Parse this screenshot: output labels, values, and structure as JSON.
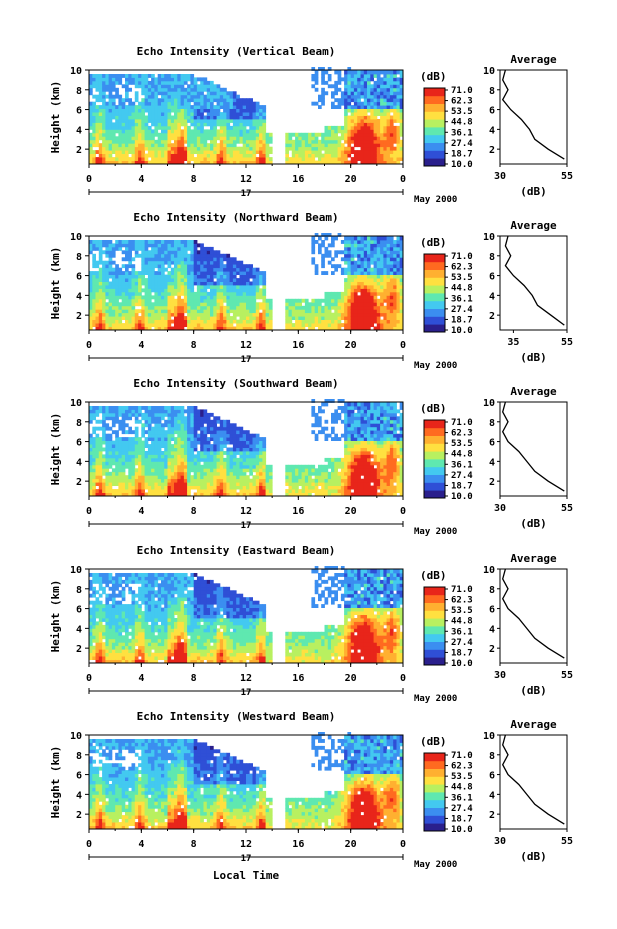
{
  "page": {
    "xlabel": "Local Time",
    "date_label": "May 2000",
    "day_label": "17"
  },
  "colorbar": {
    "unit": "(dB)",
    "ticks": [
      "71.0",
      "62.3",
      "53.5",
      "44.8",
      "36.1",
      "27.4",
      "18.7",
      "10.0"
    ],
    "colors": [
      "#2a1f8c",
      "#2f4fd6",
      "#3b8ef0",
      "#43c9f0",
      "#5fe8b0",
      "#b8f060",
      "#ffe040",
      "#ffb030",
      "#ff6a20",
      "#e8251a"
    ]
  },
  "chart_data": [
    {
      "type": "heatmap",
      "title": "Echo Intensity (Vertical Beam)",
      "ylabel": "Height (km)",
      "x_ticks": [
        "0",
        "4",
        "8",
        "12",
        "16",
        "20",
        "0"
      ],
      "y_ticks": [
        "2",
        "4",
        "6",
        "8",
        "10"
      ],
      "xlim": [
        0,
        24
      ],
      "ylim": [
        0.5,
        10
      ],
      "profile": {
        "title": "Average",
        "xlabel": "(dB)",
        "x_ticks": [
          "30",
          "55"
        ],
        "xlim": [
          30,
          55
        ],
        "y_ticks": [
          "2",
          "4",
          "6",
          "8",
          "10"
        ],
        "height": [
          1,
          2,
          3,
          4,
          5,
          6,
          7,
          8,
          9,
          10
        ],
        "value": [
          54,
          48,
          43,
          41,
          38,
          34,
          31,
          33,
          31,
          32
        ]
      }
    },
    {
      "type": "heatmap",
      "title": "Echo Intensity (Northward Beam)",
      "ylabel": "Height (km)",
      "x_ticks": [
        "0",
        "4",
        "8",
        "12",
        "16",
        "20",
        "0"
      ],
      "y_ticks": [
        "2",
        "4",
        "6",
        "8",
        "10"
      ],
      "xlim": [
        0,
        24
      ],
      "ylim": [
        0.5,
        10
      ],
      "profile": {
        "title": "Average",
        "xlabel": "(dB)",
        "x_ticks": [
          "35",
          "55"
        ],
        "xlim": [
          30,
          55
        ],
        "y_ticks": [
          "2",
          "4",
          "6",
          "8",
          "10"
        ],
        "height": [
          1,
          2,
          3,
          4,
          5,
          6,
          7,
          8,
          9,
          10
        ],
        "value": [
          54,
          49,
          44,
          42,
          39,
          35,
          32,
          34,
          32,
          33
        ]
      }
    },
    {
      "type": "heatmap",
      "title": "Echo Intensity (Southward Beam)",
      "ylabel": "Height (km)",
      "x_ticks": [
        "0",
        "4",
        "8",
        "12",
        "16",
        "20",
        "0"
      ],
      "y_ticks": [
        "2",
        "4",
        "6",
        "8",
        "10"
      ],
      "xlim": [
        0,
        24
      ],
      "ylim": [
        0.5,
        10
      ],
      "profile": {
        "title": "Average",
        "xlabel": "(dB)",
        "x_ticks": [
          "30",
          "55"
        ],
        "xlim": [
          30,
          55
        ],
        "y_ticks": [
          "2",
          "4",
          "6",
          "8",
          "10"
        ],
        "height": [
          1,
          2,
          3,
          4,
          5,
          6,
          7,
          8,
          9,
          10
        ],
        "value": [
          54,
          48,
          43,
          40,
          37,
          33,
          31,
          33,
          31,
          32
        ]
      }
    },
    {
      "type": "heatmap",
      "title": "Echo Intensity (Eastward Beam)",
      "ylabel": "Height (km)",
      "x_ticks": [
        "0",
        "4",
        "8",
        "12",
        "16",
        "20",
        "0"
      ],
      "y_ticks": [
        "2",
        "4",
        "6",
        "8",
        "10"
      ],
      "xlim": [
        0,
        24
      ],
      "ylim": [
        0.5,
        10
      ],
      "profile": {
        "title": "Average",
        "xlabel": "(dB)",
        "x_ticks": [
          "30",
          "55"
        ],
        "xlim": [
          30,
          55
        ],
        "y_ticks": [
          "2",
          "4",
          "6",
          "8",
          "10"
        ],
        "height": [
          1,
          2,
          3,
          4,
          5,
          6,
          7,
          8,
          9,
          10
        ],
        "value": [
          54,
          48,
          43,
          40,
          37,
          33,
          31,
          33,
          31,
          32
        ]
      }
    },
    {
      "type": "heatmap",
      "title": "Echo Intensity (Westward Beam)",
      "ylabel": "Height (km)",
      "x_ticks": [
        "0",
        "4",
        "8",
        "12",
        "16",
        "20",
        "0"
      ],
      "y_ticks": [
        "2",
        "4",
        "6",
        "8",
        "10"
      ],
      "xlim": [
        0,
        24
      ],
      "ylim": [
        0.5,
        10
      ],
      "profile": {
        "title": "Average",
        "xlabel": "(dB)",
        "x_ticks": [
          "30",
          "55"
        ],
        "xlim": [
          30,
          55
        ],
        "y_ticks": [
          "2",
          "4",
          "6",
          "8",
          "10"
        ],
        "height": [
          1,
          2,
          3,
          4,
          5,
          6,
          7,
          8,
          9,
          10
        ],
        "value": [
          54,
          48,
          43,
          40,
          37,
          33,
          31,
          33,
          31,
          32
        ]
      }
    }
  ]
}
